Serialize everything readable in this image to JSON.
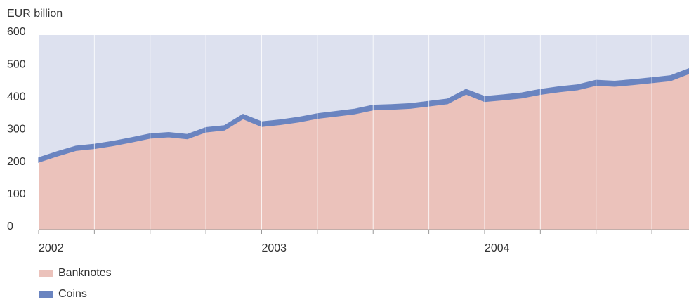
{
  "chart_data": {
    "type": "stacked_area",
    "y_label": "EUR billion",
    "categories": [
      "2002",
      null,
      null,
      null,
      null,
      null,
      null,
      null,
      null,
      null,
      null,
      null,
      "2003",
      null,
      null,
      null,
      null,
      null,
      null,
      null,
      null,
      null,
      null,
      null,
      "2004",
      null,
      null,
      null,
      null,
      null,
      null,
      null,
      null,
      null,
      null,
      null
    ],
    "series": [
      {
        "name": "Banknotes",
        "color": "#ebc2bb",
        "values": [
          209,
          228,
          245,
          251,
          260,
          271,
          283,
          287,
          281,
          302,
          308,
          343,
          319,
          325,
          333,
          344,
          351,
          358,
          370,
          372,
          375,
          382,
          389,
          419,
          396,
          401,
          407,
          418,
          426,
          432,
          446,
          443,
          448,
          454,
          460,
          482
        ]
      },
      {
        "name": "Coins",
        "color": "#6a84c0",
        "values": [
          12,
          12,
          12,
          12,
          12,
          12,
          12,
          12,
          12,
          12,
          12,
          12,
          13,
          13,
          13,
          13,
          13,
          13,
          13,
          13,
          13,
          13,
          13,
          13,
          14,
          14,
          14,
          14,
          14,
          14,
          14,
          14,
          14,
          14,
          14,
          14
        ]
      }
    ],
    "ylim": [
      0,
      600
    ],
    "yticks": [
      0,
      100,
      200,
      300,
      400,
      500,
      600
    ],
    "plot_background": "#dde1ef"
  }
}
